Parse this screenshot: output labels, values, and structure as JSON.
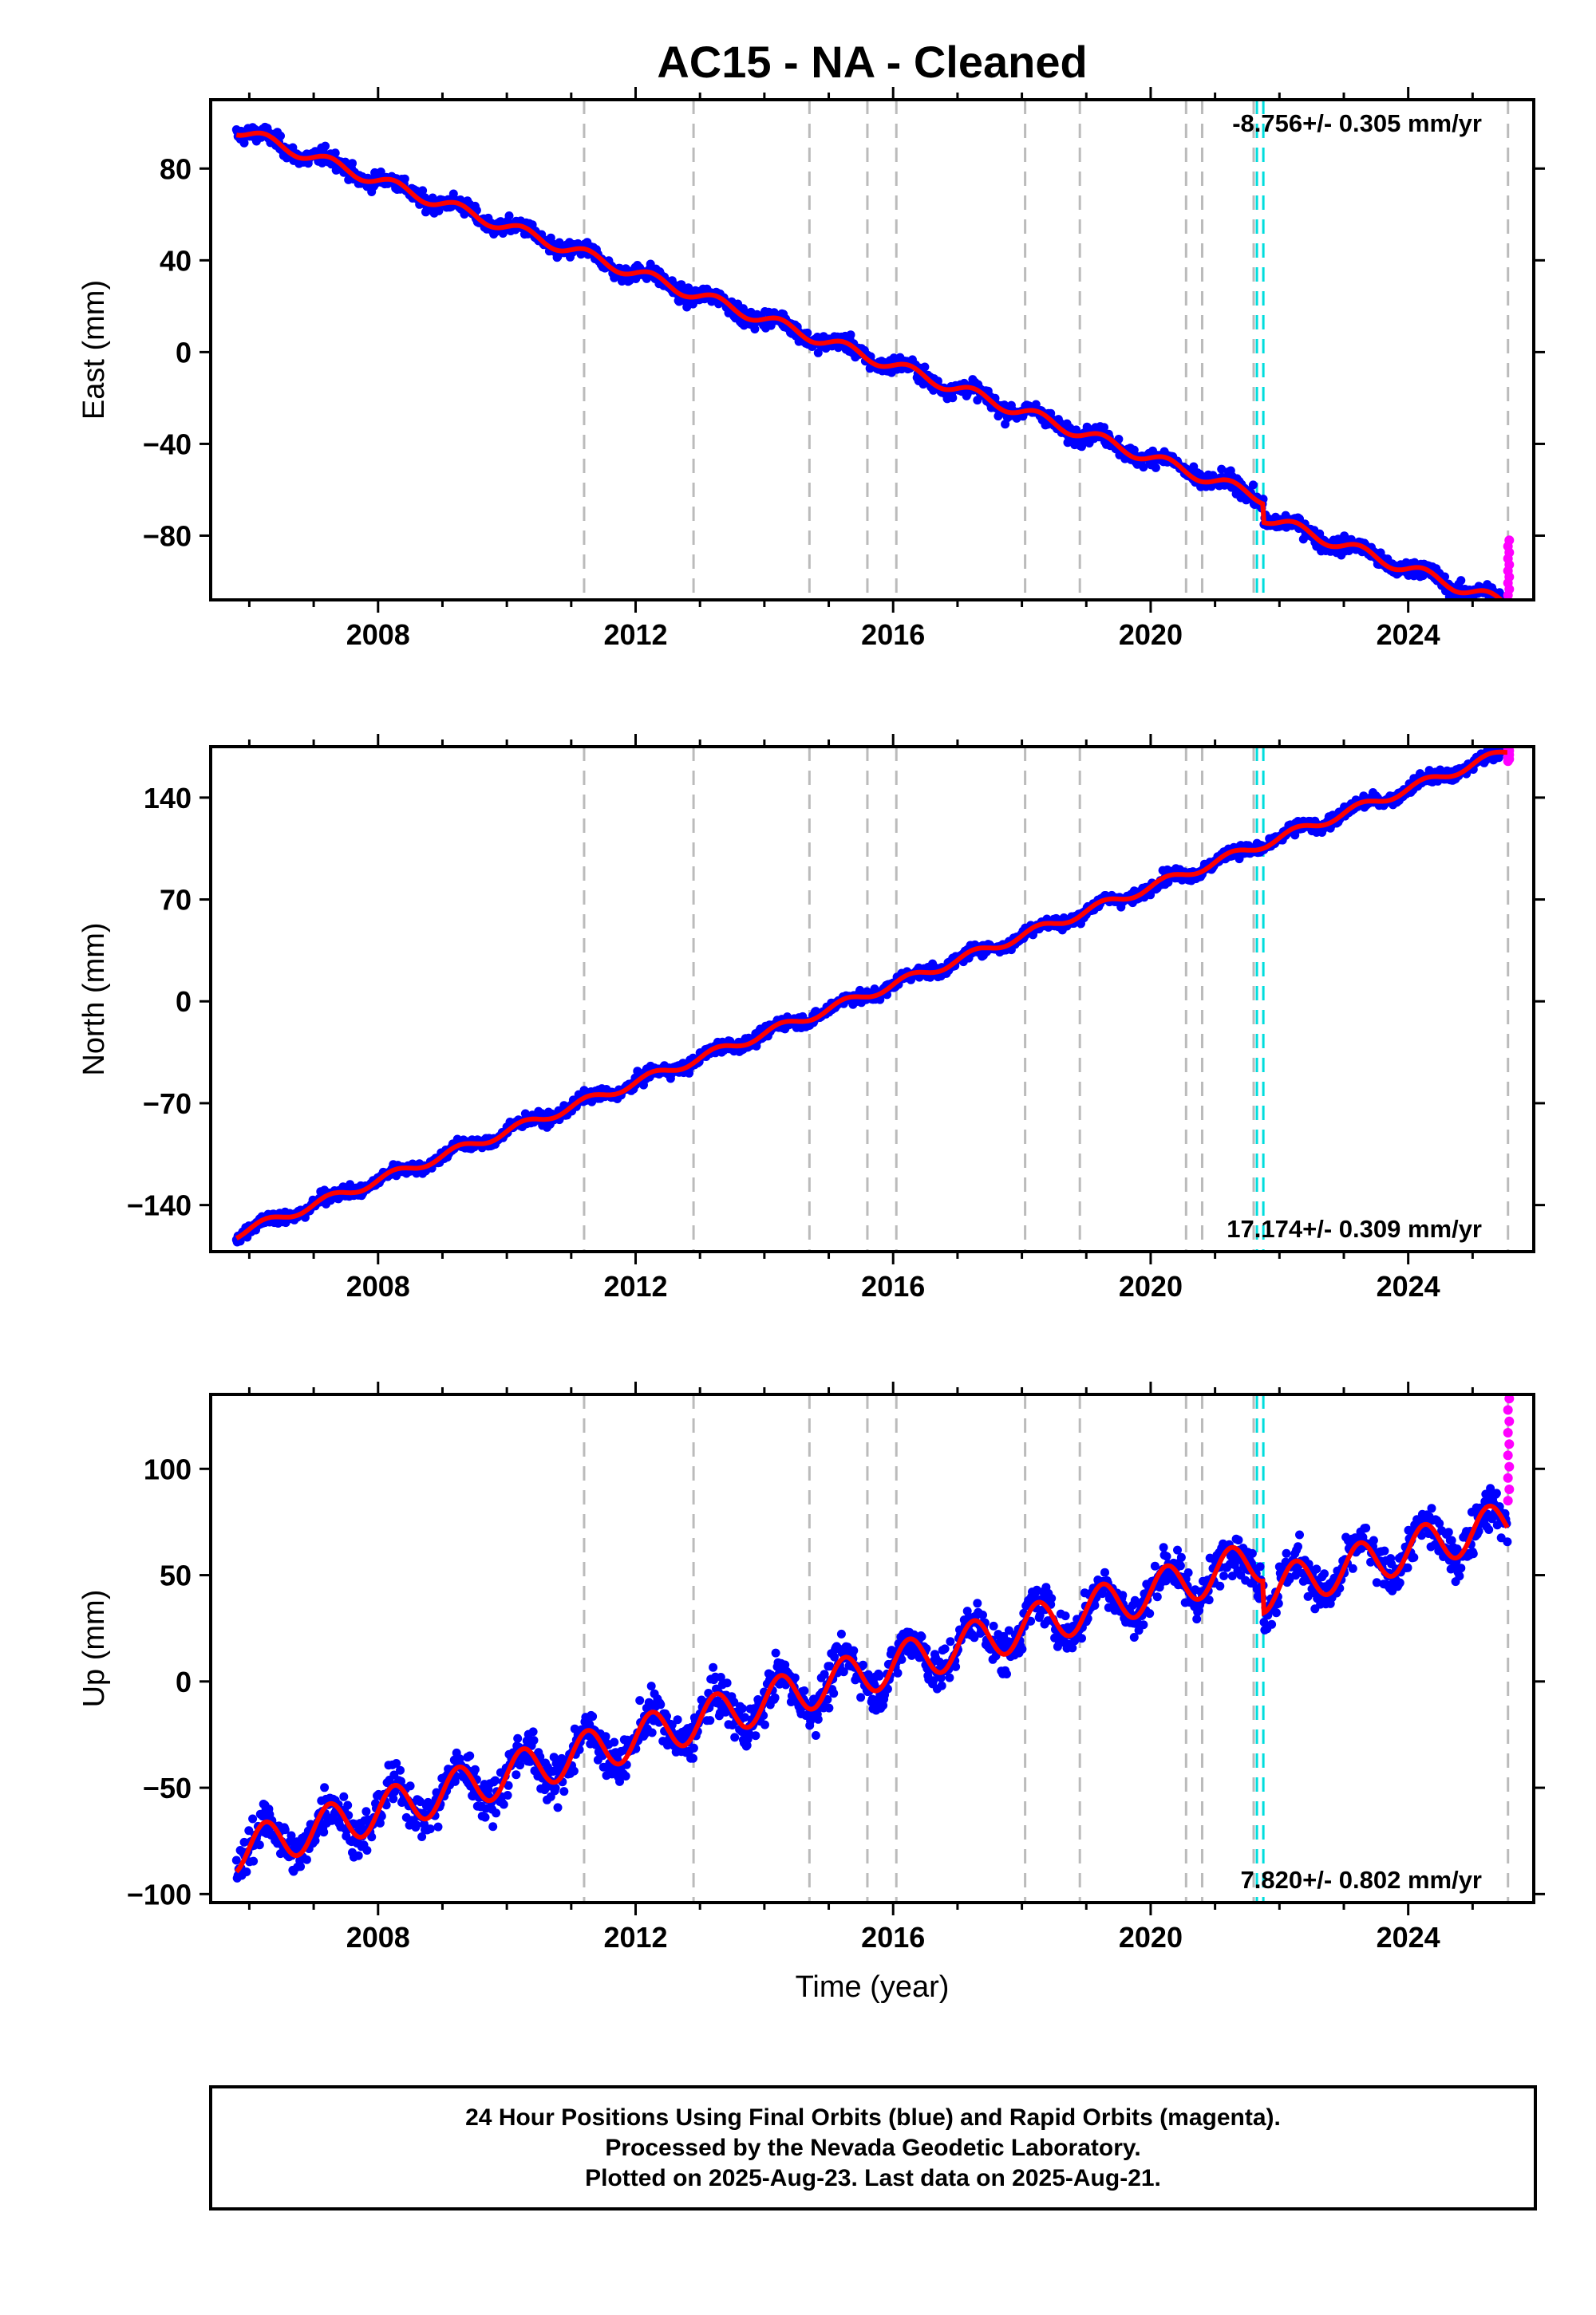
{
  "title": "AC15  - NA - Cleaned",
  "colors": {
    "final": "#0000ff",
    "rapid": "#ff00ff",
    "model": "#ff0000",
    "equipment_line": "#bbbbbb",
    "event_line": "#00dddd"
  },
  "chart_data": [
    {
      "type": "scatter",
      "panel": "east",
      "ylabel": "East (mm)",
      "xlabel": "",
      "xlim": [
        2005.4,
        2025.95
      ],
      "ylim": [
        -108,
        110
      ],
      "xticks": [
        2008,
        2012,
        2016,
        2020,
        2024
      ],
      "yticks": [
        -80,
        -40,
        0,
        40,
        80
      ],
      "ytick_labels": [
        "−80",
        "−40",
        "0",
        "40",
        "80"
      ],
      "rate_label": "-8.756+/- 0.305 mm/yr",
      "rate_position": "top-right",
      "start": [
        2005.8,
        97
      ],
      "end": [
        2025.55,
        -102
      ],
      "trend_mm_per_yr": -8.756,
      "annual_amplitude": 2.5,
      "noise": 2.5,
      "offsets": [
        {
          "t": 2021.75,
          "dy": -8
        }
      ],
      "rapid_y_range": [
        -106,
        -82
      ]
    },
    {
      "type": "scatter",
      "panel": "north",
      "ylabel": "North (mm)",
      "xlabel": "",
      "xlim": [
        2005.4,
        2025.95
      ],
      "ylim": [
        -172,
        175
      ],
      "xticks": [
        2008,
        2012,
        2016,
        2020,
        2024
      ],
      "yticks": [
        -140,
        -70,
        0,
        70,
        140
      ],
      "ytick_labels": [
        "−140",
        "−70",
        "0",
        "70",
        "140"
      ],
      "rate_label": "17.174+/- 0.309 mm/yr",
      "rate_position": "bottom-right",
      "start": [
        2005.8,
        -160
      ],
      "end": [
        2025.55,
        172
      ],
      "trend_mm_per_yr": 17.174,
      "annual_amplitude": 3,
      "noise": 3,
      "offsets": [],
      "rapid_y_range": [
        165,
        178
      ]
    },
    {
      "type": "scatter",
      "panel": "up",
      "ylabel": "Up (mm)",
      "xlabel": "Time (year)",
      "xlim": [
        2005.4,
        2025.95
      ],
      "ylim": [
        -104,
        135
      ],
      "xticks": [
        2008,
        2012,
        2016,
        2020,
        2024
      ],
      "yticks": [
        -100,
        -50,
        0,
        50,
        100
      ],
      "ytick_labels": [
        "−100",
        "−50",
        "0",
        "50",
        "100"
      ],
      "rate_label": "7.820+/- 0.802 mm/yr",
      "rate_position": "bottom-right",
      "start": [
        2005.8,
        -80
      ],
      "end": [
        2025.55,
        90
      ],
      "trend_mm_per_yr": 7.82,
      "annual_amplitude": 10,
      "noise": 7,
      "offsets": [
        {
          "t": 2021.75,
          "dy": -15
        }
      ],
      "rapid_y_range": [
        85,
        133
      ]
    }
  ],
  "equipment_changes": [
    2011.2,
    2012.9,
    2014.7,
    2015.6,
    2016.05,
    2018.05,
    2018.9,
    2020.55,
    2020.8,
    2021.6,
    2025.55
  ],
  "events": [
    2021.65,
    2021.75
  ],
  "footer": {
    "line1": "24 Hour Positions Using Final Orbits (blue) and Rapid Orbits (magenta).",
    "line2": "Processed by the Nevada Geodetic Laboratory.",
    "line3": "Plotted on 2025-Aug-23. Last data on 2025-Aug-21."
  }
}
